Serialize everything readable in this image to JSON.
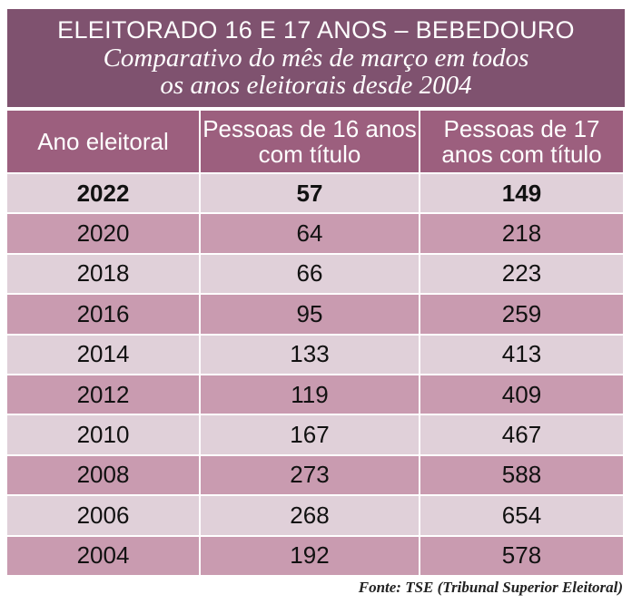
{
  "title": "ELEITORADO 16 E 17 ANOS – BEBEDOURO",
  "subtitle_line1": "Comparativo do mês de março em todos",
  "subtitle_line2": "os anos eleitorais desde 2004",
  "footer": "Fonte: TSE (Tribunal Superior Eleitoral)",
  "colors": {
    "title_bg": "#7f526f",
    "header_bg": "#9c5f7e",
    "row_light": "#e0d0d9",
    "row_dark": "#c99bb0"
  },
  "chart_data": {
    "type": "table",
    "columns": [
      "Ano eleitoral",
      "Pessoas de 16 anos com título",
      "Pessoas de 17 anos com título"
    ],
    "rows": [
      [
        "2022",
        "57",
        "149"
      ],
      [
        "2020",
        "64",
        "218"
      ],
      [
        "2018",
        "66",
        "223"
      ],
      [
        "2016",
        "95",
        "259"
      ],
      [
        "2014",
        "133",
        "413"
      ],
      [
        "2012",
        "119",
        "409"
      ],
      [
        "2010",
        "167",
        "467"
      ],
      [
        "2008",
        "273",
        "588"
      ],
      [
        "2006",
        "268",
        "654"
      ],
      [
        "2004",
        "192",
        "578"
      ]
    ]
  }
}
